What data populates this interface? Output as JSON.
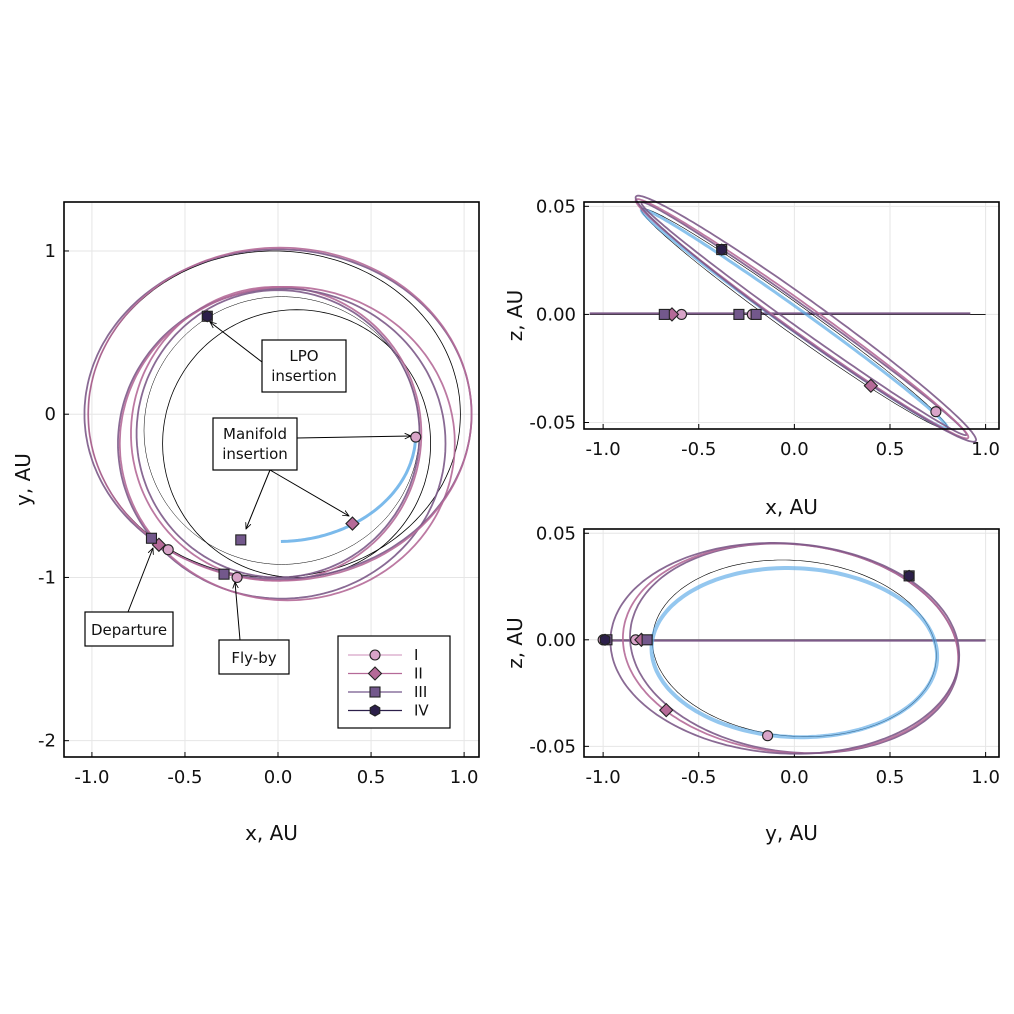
{
  "colors": {
    "I": "#d8a4c8",
    "II": "#b56a98",
    "III": "#73588c",
    "IV": "#2c1f4a",
    "main": "#7c5a88",
    "blue": "#5aa9e6",
    "earth": "#111111"
  },
  "legend": {
    "items": [
      {
        "label": "I",
        "marker": "circle",
        "color": "#d8a4c8"
      },
      {
        "label": "II",
        "marker": "diamond",
        "color": "#b56a98"
      },
      {
        "label": "III",
        "marker": "square",
        "color": "#73588c"
      },
      {
        "label": "IV",
        "marker": "hexagon",
        "color": "#2c1f4a"
      }
    ]
  },
  "chart_data": [
    {
      "type": "line",
      "panel": "xy",
      "xlabel": "x, AU",
      "ylabel": "y, AU",
      "xlim": [
        -1.15,
        1.08
      ],
      "ylim": [
        -2.1,
        1.3
      ],
      "xticks": [
        -1.0,
        -0.5,
        0.0,
        0.5,
        1.0
      ],
      "xtick_labels": [
        "-1.0",
        "-0.5",
        "0.0",
        "0.5",
        "1.0"
      ],
      "yticks": [
        -2,
        -1,
        0,
        1
      ],
      "ytick_labels": [
        "-2",
        "-1",
        "0",
        "1"
      ],
      "grid": true,
      "legend_position": "bottom-right",
      "annotations": [
        {
          "text": "LPO\ninsertion",
          "point": [
            -0.38,
            0.6
          ],
          "anchor": [
            0.13,
            0.29
          ]
        },
        {
          "text": "Manifold\ninsertion",
          "point": [
            0.71,
            -0.14
          ],
          "anchor": [
            -0.13,
            -0.17
          ],
          "extra_points": [
            [
              -0.17,
              -0.71
            ],
            [
              0.37,
              -0.66
            ]
          ]
        },
        {
          "text": "Departure",
          "point": [
            -0.68,
            -0.83
          ],
          "anchor": [
            -0.8,
            -1.33
          ]
        },
        {
          "text": "Fly-by",
          "point": [
            -0.23,
            -1.04
          ],
          "anchor": [
            -0.14,
            -1.5
          ]
        }
      ],
      "markers": {
        "I": [
          [
            0.74,
            -0.14
          ],
          [
            -0.22,
            -1.0
          ],
          [
            -0.59,
            -0.83
          ]
        ],
        "II": [
          [
            0.4,
            -0.67
          ],
          [
            -0.64,
            -0.8
          ]
        ],
        "III": [
          [
            -0.68,
            -0.76
          ],
          [
            -0.29,
            -0.98
          ],
          [
            -0.2,
            -0.77
          ],
          [
            -0.38,
            0.6
          ]
        ],
        "IV": [
          [
            -0.38,
            0.6
          ]
        ]
      }
    },
    {
      "type": "line",
      "panel": "xz",
      "xlabel": "x, AU",
      "ylabel": "z, AU",
      "xlim": [
        -1.1,
        1.07
      ],
      "ylim": [
        -0.053,
        0.052
      ],
      "xticks": [
        -1.0,
        -0.5,
        0.0,
        0.5,
        1.0
      ],
      "xtick_labels": [
        "-1.0",
        "-0.5",
        "0.0",
        "0.5",
        "1.0"
      ],
      "yticks": [
        -0.05,
        0.0,
        0.05
      ],
      "ytick_labels": [
        "-0.05",
        "0.00",
        "0.05"
      ],
      "grid": true,
      "markers": {
        "I": [
          [
            0.74,
            -0.045
          ],
          [
            -0.59,
            0.0
          ],
          [
            -0.22,
            0.0
          ]
        ],
        "II": [
          [
            0.4,
            -0.033
          ],
          [
            -0.64,
            0.0
          ]
        ],
        "III": [
          [
            -0.68,
            0.0
          ],
          [
            -0.29,
            0.0
          ],
          [
            -0.2,
            0.0
          ],
          [
            -0.38,
            0.03
          ]
        ],
        "IV": [
          [
            -0.38,
            0.03
          ]
        ]
      }
    },
    {
      "type": "line",
      "panel": "yz",
      "xlabel": "y, AU",
      "ylabel": "z, AU",
      "xlim": [
        -1.1,
        1.07
      ],
      "ylim": [
        -0.055,
        0.052
      ],
      "xticks": [
        -1.0,
        -0.5,
        0.0,
        0.5,
        1.0
      ],
      "xtick_labels": [
        "-1.0",
        "-0.5",
        "0.0",
        "0.5",
        "1.0"
      ],
      "yticks": [
        -0.05,
        0.0,
        0.05
      ],
      "ytick_labels": [
        "-0.05",
        "0.00",
        "0.05"
      ],
      "grid": true,
      "markers": {
        "I": [
          [
            -0.14,
            -0.045
          ],
          [
            -0.83,
            0.0
          ],
          [
            -1.0,
            0.0
          ]
        ],
        "II": [
          [
            -0.67,
            -0.033
          ],
          [
            -0.8,
            0.0
          ]
        ],
        "III": [
          [
            -0.98,
            0.0
          ],
          [
            -0.77,
            0.0
          ],
          [
            0.6,
            0.03
          ]
        ],
        "IV": [
          [
            0.6,
            0.03
          ],
          [
            -0.99,
            0.0
          ]
        ]
      }
    }
  ]
}
